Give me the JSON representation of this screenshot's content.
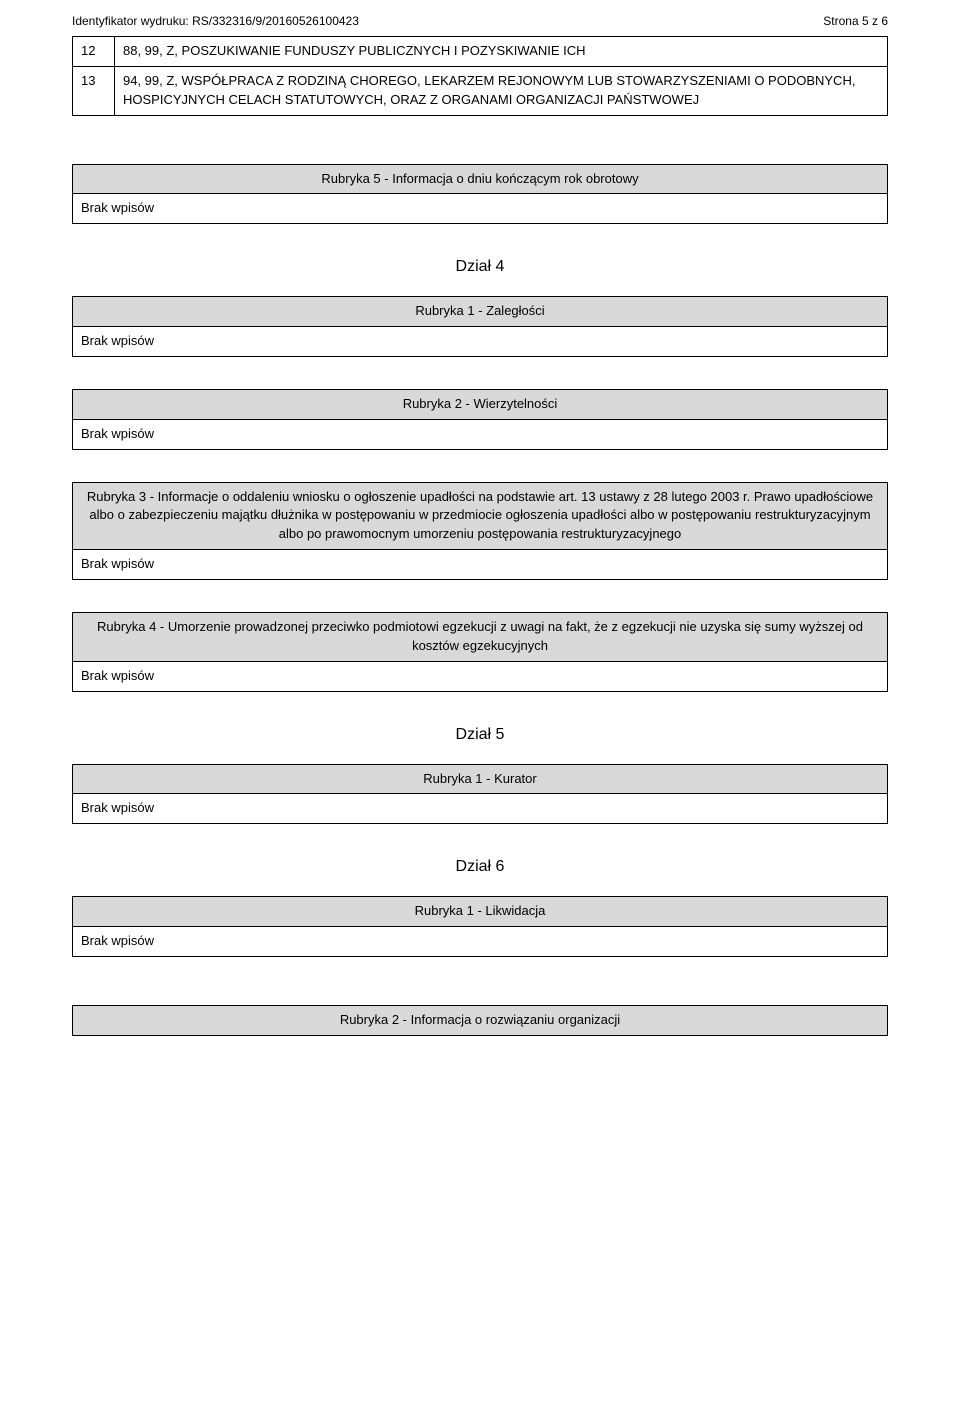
{
  "header": {
    "identifier_label": "Identyfikator wydruku:",
    "identifier_value": "RS/332316/9/20160526100423",
    "page_label": "Strona 5 z 6"
  },
  "top_table": {
    "rows": [
      {
        "num": "12",
        "text": "88, 99, Z, POSZUKIWANIE FUNDUSZY PUBLICZNYCH I POZYSKIWANIE ICH"
      },
      {
        "num": "13",
        "text": "94, 99, Z, WSPÓŁPRACA Z RODZINĄ CHOREGO, LEKARZEM REJONOWYM LUB STOWARZYSZENIAMI O PODOBNYCH, HOSPICYJNYCH CELACH STATUTOWYCH, ORAZ Z ORGANAMI ORGANIZACJI PAŃSTWOWEJ"
      }
    ]
  },
  "rubrics": {
    "r5": "Rubryka 5 - Informacja o dniu kończącym rok obrotowy",
    "d4_title": "Dział 4",
    "d4_r1": "Rubryka 1 - Zaległości",
    "d4_r2": "Rubryka 2 - Wierzytelności",
    "d4_r3": "Rubryka 3 - Informacje o oddaleniu wniosku o ogłoszenie upadłości na podstawie art. 13 ustawy z 28 lutego 2003 r. Prawo upadłościowe albo o zabezpieczeniu majątku dłużnika w postępowaniu w przedmiocie ogłoszenia upadłości albo w postępowaniu restrukturyzacyjnym albo po prawomocnym umorzeniu postępowania restrukturyzacyjnego",
    "d4_r4": "Rubryka 4 - Umorzenie prowadzonej przeciwko podmiotowi egzekucji z uwagi na fakt, że z egzekucji nie uzyska się sumy wyższej od kosztów egzekucyjnych",
    "d5_title": "Dział 5",
    "d5_r1": "Rubryka 1 - Kurator",
    "d6_title": "Dział 6",
    "d6_r1": "Rubryka 1 - Likwidacja",
    "d6_r2": "Rubryka 2 - Informacja o rozwiązaniu organizacji"
  },
  "brak": "Brak wpisów",
  "colors": {
    "header_bg": "#d9d9d9",
    "border": "#000000",
    "text": "#000000",
    "page_bg": "#ffffff"
  }
}
